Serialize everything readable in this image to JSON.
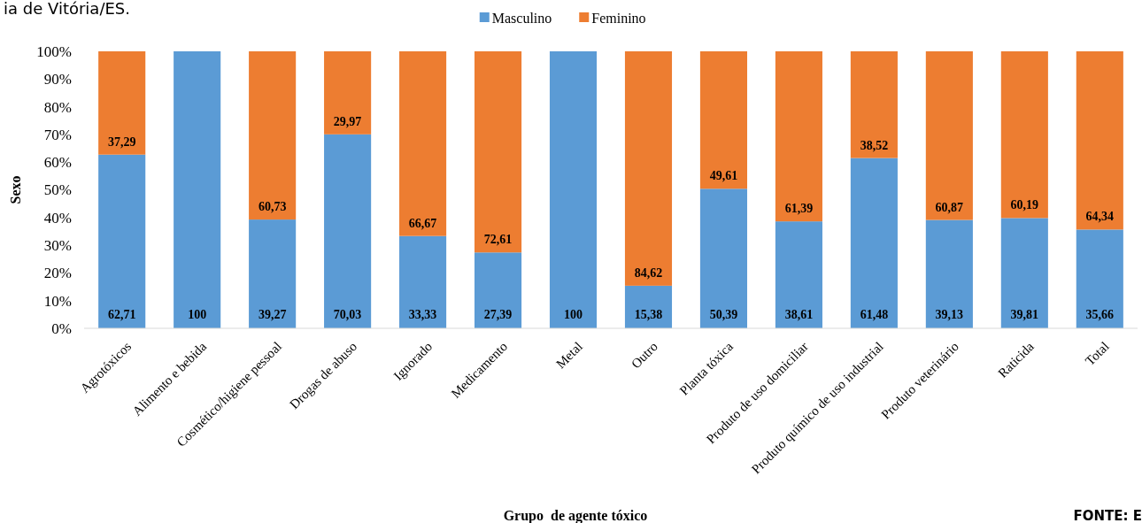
{
  "chart_data": {
    "type": "bar",
    "title": "ia de Vitória/ES.",
    "xlabel": "Grupo  de agente tóxico",
    "ylabel": "Sexo",
    "stacked": true,
    "legend": "top",
    "grid": false,
    "categories": [
      "Agrotóxicos",
      "Alimento e bebida",
      "Cosmético/higiene pessoal",
      "Drogas de abuso",
      "Ignorado",
      "Medicamento",
      "Metal",
      "Outro",
      "Planta tóxica",
      "Produto de uso domiciliar",
      "Produto químico de uso industrial",
      "Produto veterinário",
      "Raticida",
      "Total"
    ],
    "series": [
      {
        "name": "Masculino",
        "color": "#5b9bd5",
        "values": [
          62.71,
          100,
          39.27,
          70.03,
          33.33,
          27.39,
          100,
          15.38,
          50.39,
          38.61,
          61.48,
          39.13,
          39.81,
          35.66
        ],
        "value_labels": [
          "62,71",
          "100",
          "39,27",
          "70,03",
          "33,33",
          "27,39",
          "100",
          "15,38",
          "50,39",
          "38,61",
          "61,48",
          "39,13",
          "39,81",
          "35,66"
        ]
      },
      {
        "name": "Feminino",
        "color": "#ed7d31",
        "values": [
          37.29,
          0,
          60.73,
          29.97,
          66.67,
          72.61,
          0,
          84.62,
          49.61,
          61.39,
          38.52,
          60.87,
          60.19,
          64.34
        ],
        "value_labels": [
          "37,29",
          null,
          "60,73",
          "29,97",
          "66,67",
          "72,61",
          null,
          "84,62",
          "49,61",
          "61,39",
          "38,52",
          "60,87",
          "60,19",
          "64,34"
        ]
      }
    ],
    "ylim": [
      0,
      100
    ],
    "yticks": [
      {
        "value": 0,
        "label": "0%"
      },
      {
        "value": 10,
        "label": "10%"
      },
      {
        "value": 20,
        "label": "20%"
      },
      {
        "value": 30,
        "label": "30%"
      },
      {
        "value": 40,
        "label": "40%"
      },
      {
        "value": 50,
        "label": "50%"
      },
      {
        "value": 60,
        "label": "60%"
      },
      {
        "value": 70,
        "label": "70%"
      },
      {
        "value": 80,
        "label": "80%"
      },
      {
        "value": 90,
        "label": "90%"
      },
      {
        "value": 100,
        "label": "100%"
      }
    ],
    "annotations": [
      "FONTE: E"
    ]
  }
}
